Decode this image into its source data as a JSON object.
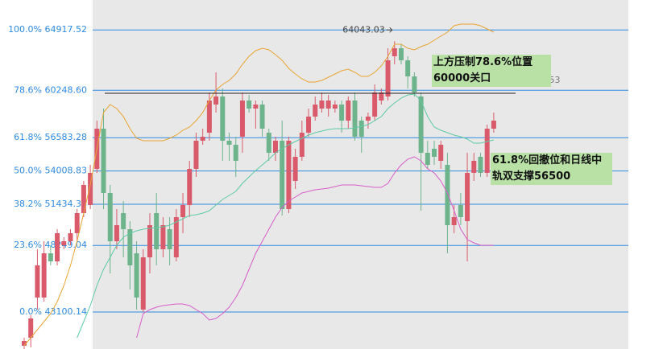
{
  "chart_data": {
    "type": "candlestick",
    "ylim": [
      40239,
      67234
    ],
    "yticks": [
      {
        "value": 64917.52,
        "label": "100.0% 64917.52"
      },
      {
        "value": 60248.6,
        "label": "78.6% 60248.60"
      },
      {
        "value": 56583.28,
        "label": "61.8% 56583.28"
      },
      {
        "value": 54008.83,
        "label": "50.0% 54008.83"
      },
      {
        "value": 51434.38,
        "label": "38.2% 51434.38"
      },
      {
        "value": 48249.04,
        "label": "23.6% 48249.04"
      },
      {
        "value": 43100.14,
        "label": "0.0% 43100.14"
      }
    ],
    "grid": true,
    "grid_color": "#2f8ae0",
    "up_color": "#d95b6b",
    "down_color": "#6db38c",
    "candles": {
      "open": [
        40488,
        41110,
        44220,
        44220,
        47641,
        47019,
        48263,
        48574,
        49196,
        50751,
        51373,
        54172,
        57282,
        52306,
        48574,
        50751,
        49507,
        47641,
        43287,
        47330,
        50751,
        47952,
        49507,
        47330,
        50440,
        51373,
        54172,
        56349,
        56971,
        59148,
        59770,
        56349,
        56038,
        56660,
        59459,
        58837,
        59148,
        56971,
        55416,
        56349,
        51062,
        53239,
        55105,
        56971,
        58215,
        58837,
        58837,
        58837,
        59148,
        57904,
        59459,
        57904,
        57904,
        58215,
        59459,
        59770,
        62880,
        63502,
        62569,
        61325,
        59770,
        55416,
        55727,
        54794,
        54483,
        49818,
        51373,
        50129,
        53861,
        55105,
        53861,
        57282
      ],
      "high": [
        41110,
        42852,
        47952,
        48574,
        48263,
        49507,
        48885,
        49507,
        51062,
        53239,
        54483,
        57904,
        58837,
        52928,
        51062,
        51684,
        50129,
        48574,
        47952,
        50751,
        52306,
        50440,
        50440,
        51062,
        52306,
        54794,
        56971,
        57282,
        60081,
        61636,
        60392,
        56971,
        56660,
        60081,
        59894,
        59459,
        59459,
        57282,
        56660,
        57904,
        56660,
        55727,
        57904,
        58837,
        59770,
        60081,
        59894,
        59459,
        59459,
        59770,
        60081,
        58215,
        58526,
        60703,
        60392,
        63502,
        64043.03,
        63813,
        62880,
        61636,
        60081,
        56349,
        56349,
        56349,
        55416,
        51373,
        52306,
        55416,
        55416,
        55416,
        57593,
        58526
      ],
      "low": [
        40239,
        40364,
        43287,
        43909,
        46708,
        46708,
        47952,
        48263,
        48574,
        50440,
        51062,
        53861,
        51062,
        46086,
        47952,
        47330,
        44842,
        43287,
        43100,
        46086,
        46708,
        47330,
        46708,
        47019,
        49196,
        50440,
        53550,
        56038,
        56349,
        58526,
        54794,
        54794,
        53550,
        55416,
        58526,
        57282,
        56660,
        54794,
        54794,
        50564,
        50751,
        52617,
        54794,
        56660,
        57904,
        58526,
        58215,
        58526,
        56971,
        57282,
        56349,
        55416,
        57282,
        57904,
        59148,
        59459,
        62258,
        62258,
        60392,
        59770,
        50938,
        54172,
        54483,
        54172,
        47641,
        49196,
        49818,
        47019,
        53239,
        53550,
        53550,
        56971
      ],
      "close": [
        40861,
        42603,
        46708,
        47641,
        47019,
        49196,
        48574,
        49196,
        50751,
        52928,
        53861,
        57282,
        52306,
        48574,
        49818,
        49507,
        46708,
        44220,
        47330,
        49818,
        47952,
        49818,
        47952,
        50440,
        51373,
        54172,
        56349,
        56660,
        59459,
        59770,
        56349,
        56038,
        54794,
        59459,
        58837,
        59148,
        57282,
        55416,
        56349,
        51062,
        56349,
        55105,
        56971,
        58215,
        59148,
        59459,
        59459,
        59148,
        57904,
        59459,
        56660,
        56660,
        58215,
        60081,
        60081,
        62569,
        63502,
        62569,
        61325,
        60081,
        55416,
        54483,
        55105,
        56038,
        49818,
        50440,
        50440,
        53861,
        54794,
        53861,
        57282,
        57904
      ]
    },
    "series": [
      {
        "color": "#e9a534",
        "values": [
          40488,
          41110,
          41732,
          42354,
          42976,
          43909,
          45153,
          46708,
          48574,
          50751,
          52928,
          55727,
          58526,
          59148,
          58837,
          58215,
          57282,
          56536,
          56349,
          56349,
          56349,
          56349,
          56536,
          56784,
          57158,
          57406,
          57904,
          58526,
          59459,
          60268,
          60703,
          61014,
          61512,
          62258,
          62880,
          63315,
          63502,
          63378,
          63004,
          62569,
          61947,
          61512,
          61138,
          60890,
          60890,
          61014,
          61263,
          61512,
          61760,
          61885,
          61636,
          61325,
          61325,
          61636,
          62134,
          62880,
          63813,
          63813,
          63502,
          63378,
          63626,
          63813,
          64124,
          64435,
          64746,
          65244,
          65368,
          65368,
          65368,
          65244,
          64995,
          64746
        ]
      },
      {
        "color": "#5fcaa6",
        "values": [
          null,
          null,
          null,
          null,
          null,
          null,
          null,
          null,
          41110,
          42354,
          43598,
          45153,
          46397,
          47330,
          48263,
          48885,
          49196,
          49383,
          49507,
          49569,
          49631,
          49694,
          49818,
          50067,
          50316,
          50564,
          50627,
          50751,
          50938,
          51373,
          51808,
          52119,
          52430,
          53052,
          53550,
          54048,
          54483,
          54918,
          55416,
          55727,
          56038,
          56287,
          56536,
          56784,
          56971,
          57095,
          57220,
          57282,
          57282,
          57282,
          57344,
          57469,
          57593,
          57904,
          58215,
          58837,
          59272,
          59646,
          59894,
          59957,
          59459,
          58215,
          57406,
          57158,
          56971,
          56784,
          56660,
          56473,
          56162,
          56162,
          56287,
          56411
        ]
      },
      {
        "color": "#d75ec8",
        "values": [
          null,
          null,
          null,
          null,
          null,
          null,
          null,
          null,
          null,
          null,
          null,
          null,
          null,
          null,
          null,
          null,
          null,
          41110,
          42976,
          43287,
          43474,
          43598,
          43660,
          43722,
          43722,
          43598,
          43287,
          42976,
          42478,
          42603,
          42976,
          43474,
          44220,
          45153,
          46397,
          47641,
          48574,
          49507,
          50440,
          51186,
          51684,
          51995,
          52306,
          52430,
          52555,
          52617,
          52679,
          52804,
          52928,
          52928,
          52928,
          52866,
          52804,
          52741,
          52741,
          53052,
          53861,
          54483,
          54918,
          55105,
          54794,
          54172,
          53861,
          53239,
          52306,
          50938,
          49507,
          48698,
          48450,
          48263,
          48263,
          48263
        ]
      }
    ],
    "hline": {
      "value": 60021.53,
      "color": "#222222"
    },
    "annotations": [
      "上方压制78.6%位置60000关口",
      "61.8%回撤位和日线中轨双支撑56500"
    ]
  }
}
